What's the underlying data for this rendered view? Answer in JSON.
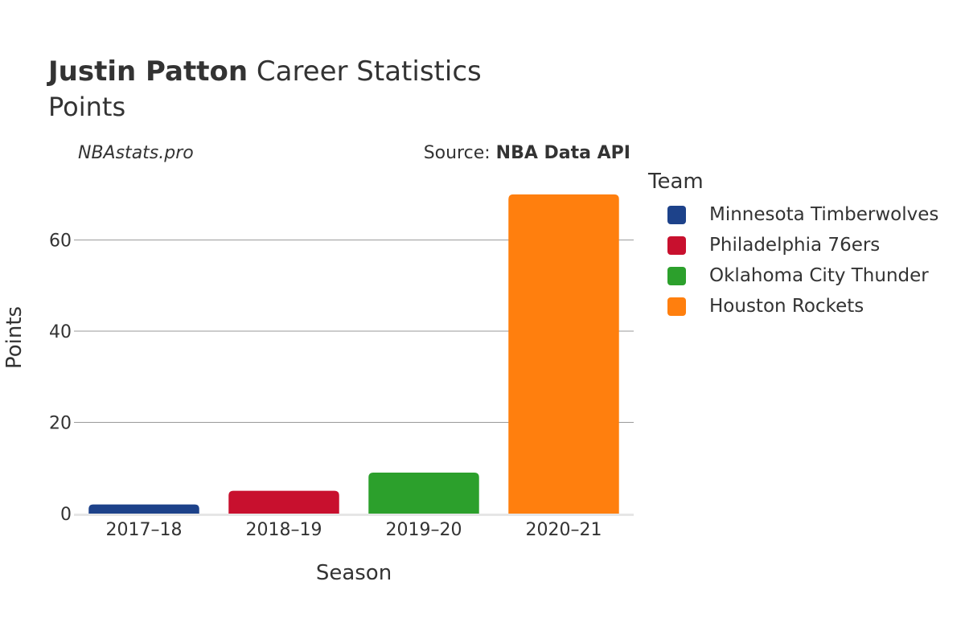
{
  "header": {
    "player": "Justin Patton",
    "title_rest": "Career Statistics",
    "subtitle": "Points",
    "credit": "NBAstats.pro",
    "source_prefix": "Source: ",
    "source_name": "NBA Data API"
  },
  "legend": {
    "title": "Team",
    "items": [
      {
        "label": "Minnesota Timberwolves",
        "color": "#1d428a"
      },
      {
        "label": "Philadelphia 76ers",
        "color": "#c8102e"
      },
      {
        "label": "Oklahoma City Thunder",
        "color": "#2ca02c"
      },
      {
        "label": "Houston Rockets",
        "color": "#ff7f0e"
      }
    ]
  },
  "chart_data": {
    "type": "bar",
    "title": "Justin Patton Career Statistics",
    "subtitle": "Points",
    "xlabel": "Season",
    "ylabel": "Points",
    "categories": [
      "2017–18",
      "2018–19",
      "2019–20",
      "2020–21"
    ],
    "values": [
      2,
      5,
      9,
      70
    ],
    "teams": [
      "Minnesota Timberwolves",
      "Philadelphia 76ers",
      "Oklahoma City Thunder",
      "Houston Rockets"
    ],
    "colors": [
      "#1d428a",
      "#c8102e",
      "#2ca02c",
      "#ff7f0e"
    ],
    "yticks": [
      0,
      20,
      40,
      60
    ],
    "ylim": [
      0,
      73.5
    ],
    "grid": true,
    "legend_position": "right"
  }
}
